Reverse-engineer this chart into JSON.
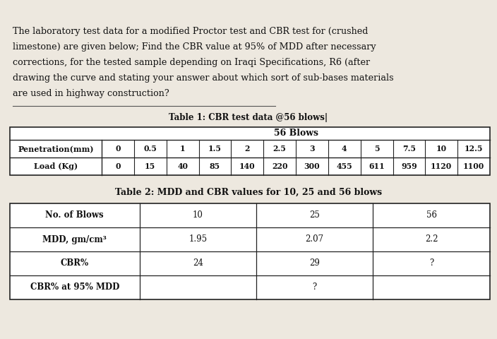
{
  "background_color": "#ede8df",
  "title_lines": [
    "The laboratory test data for a modified Proctor test and CBR test for (crushed",
    "limestone) are given below; Find the CBR value at 95% of MDD after necessary",
    "corrections, for the tested sample depending on Iraqi Specifications, R6 (after",
    "drawing the curve and stating your answer about which sort of sub-bases materials",
    "are used in highway construction?"
  ],
  "table1_title": "Table 1: CBR test data @56 blows|",
  "table1_subtitle": "56 Blows",
  "table1_row1_label": "Penetration(mm)",
  "table1_row2_label": "Load (Kg)",
  "table1_penetration": [
    "0",
    "0.5",
    "1",
    "1.5",
    "2",
    "2.5",
    "3",
    "4",
    "5",
    "7.5",
    "10",
    "12.5"
  ],
  "table1_load": [
    "0",
    "15",
    "40",
    "85",
    "140",
    "220",
    "300",
    "455",
    "611",
    "959",
    "1120",
    "1100"
  ],
  "table2_title": "Table 2: MDD and CBR values for 10, 25 and 56 blows",
  "table2_col_headers": [
    "No. of Blows",
    "10",
    "25",
    "56"
  ],
  "table2_rows": [
    [
      "MDD, gm/cm³",
      "1.95",
      "2.07",
      "2.2"
    ],
    [
      "CBR%",
      "24",
      "29",
      "?"
    ],
    [
      "CBR% at 95% MDD",
      "",
      "?",
      ""
    ]
  ],
  "font_color": "#111111",
  "table_border": "#222222",
  "white": "#ffffff"
}
